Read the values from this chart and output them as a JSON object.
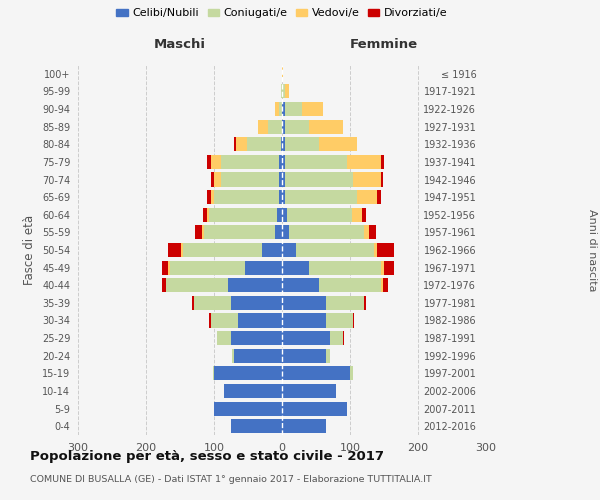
{
  "age_groups": [
    "0-4",
    "5-9",
    "10-14",
    "15-19",
    "20-24",
    "25-29",
    "30-34",
    "35-39",
    "40-44",
    "45-49",
    "50-54",
    "55-59",
    "60-64",
    "65-69",
    "70-74",
    "75-79",
    "80-84",
    "85-89",
    "90-94",
    "95-99",
    "100+"
  ],
  "birth_years": [
    "2012-2016",
    "2007-2011",
    "2002-2006",
    "1997-2001",
    "1992-1996",
    "1987-1991",
    "1982-1986",
    "1977-1981",
    "1972-1976",
    "1967-1971",
    "1962-1966",
    "1957-1961",
    "1952-1956",
    "1947-1951",
    "1942-1946",
    "1937-1941",
    "1932-1936",
    "1927-1931",
    "1922-1926",
    "1917-1921",
    "≤ 1916"
  ],
  "males": {
    "celibi": [
      75,
      100,
      85,
      100,
      70,
      75,
      65,
      75,
      80,
      55,
      30,
      10,
      8,
      5,
      5,
      5,
      2,
      0,
      0,
      0,
      0
    ],
    "coniugati": [
      0,
      0,
      0,
      2,
      3,
      20,
      40,
      55,
      90,
      110,
      115,
      105,
      100,
      95,
      85,
      85,
      50,
      20,
      5,
      1,
      0
    ],
    "vedovi": [
      0,
      0,
      0,
      0,
      1,
      1,
      0,
      0,
      1,
      2,
      3,
      3,
      3,
      5,
      10,
      15,
      15,
      15,
      5,
      1,
      0
    ],
    "divorziati": [
      0,
      0,
      0,
      0,
      0,
      0,
      2,
      3,
      5,
      10,
      20,
      10,
      5,
      5,
      5,
      5,
      3,
      0,
      0,
      0,
      0
    ]
  },
  "females": {
    "nubili": [
      65,
      95,
      80,
      100,
      65,
      70,
      65,
      65,
      55,
      40,
      20,
      10,
      8,
      5,
      5,
      5,
      5,
      5,
      5,
      0,
      0
    ],
    "coniugate": [
      0,
      0,
      0,
      5,
      5,
      20,
      40,
      55,
      90,
      105,
      115,
      110,
      95,
      105,
      100,
      90,
      50,
      35,
      25,
      5,
      0
    ],
    "vedove": [
      0,
      0,
      0,
      0,
      0,
      0,
      0,
      1,
      3,
      5,
      5,
      8,
      15,
      30,
      40,
      50,
      55,
      50,
      30,
      5,
      1
    ],
    "divorziate": [
      0,
      0,
      0,
      0,
      0,
      1,
      1,
      3,
      8,
      15,
      25,
      10,
      5,
      5,
      3,
      5,
      0,
      0,
      0,
      0,
      0
    ]
  },
  "colors": {
    "celibi": "#4472C4",
    "coniugati": "#C5D9A0",
    "vedovi": "#FFCC66",
    "divorziati": "#CC0000"
  },
  "title": "Popolazione per età, sesso e stato civile - 2017",
  "subtitle": "COMUNE DI BUSALLA (GE) - Dati ISTAT 1° gennaio 2017 - Elaborazione TUTTITALIA.IT",
  "xlabel_left": "Maschi",
  "xlabel_right": "Femmine",
  "ylabel_left": "Fasce di età",
  "ylabel_right": "Anni di nascita",
  "xlim": 300,
  "bg_color": "#f5f5f5",
  "grid_color": "#cccccc",
  "legend_labels": [
    "Celibi/Nubili",
    "Coniugati/e",
    "Vedovi/e",
    "Divorziati/e"
  ]
}
